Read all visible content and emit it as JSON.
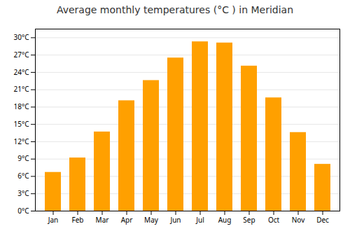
{
  "chart_data": {
    "type": "bar",
    "title": "Average monthly temperatures (°C ) in Meridian",
    "categories": [
      "Jan",
      "Feb",
      "Mar",
      "Apr",
      "May",
      "Jun",
      "Jul",
      "Aug",
      "Sep",
      "Oct",
      "Nov",
      "Dec"
    ],
    "values": [
      6.7,
      9.2,
      13.7,
      19.1,
      22.6,
      26.5,
      29.3,
      29.1,
      25.1,
      19.6,
      13.6,
      8.1
    ],
    "color": "#FFA000",
    "ylim": [
      0,
      31.5
    ],
    "yticks": [
      {
        "value": 0,
        "label": "0°C"
      },
      {
        "value": 3,
        "label": "3°C"
      },
      {
        "value": 6,
        "label": "6°C"
      },
      {
        "value": 9,
        "label": "9°C"
      },
      {
        "value": 12,
        "label": "12°C"
      },
      {
        "value": 15,
        "label": "15°C"
      },
      {
        "value": 18,
        "label": "18°C"
      },
      {
        "value": 21,
        "label": "21°C"
      },
      {
        "value": 24,
        "label": "24°C"
      },
      {
        "value": 27,
        "label": "27°C"
      },
      {
        "value": 30,
        "label": "30°C"
      }
    ],
    "grid": true
  }
}
